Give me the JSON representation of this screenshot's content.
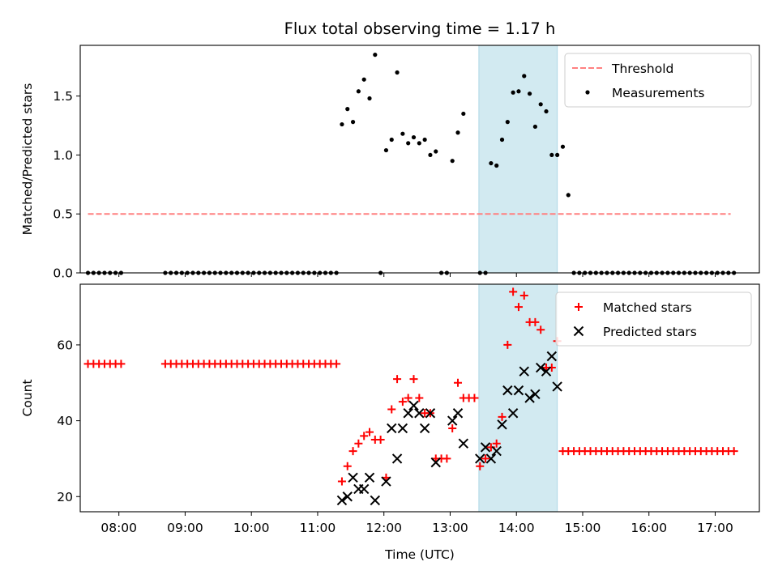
{
  "title": "Flux total observing time = 1.17 h",
  "colors": {
    "threshold": "#ff8080",
    "measurement": "#000000",
    "matched": "#ff0000",
    "predicted": "#000000",
    "highlight": "#add8e6"
  },
  "chart_data": [
    {
      "type": "scatter",
      "panel": "top",
      "xlabel": "",
      "ylabel": "Matched/Predicted stars",
      "xlim": [
        "07:25",
        "17:40"
      ],
      "ylim": [
        0,
        1.93
      ],
      "yticks": [
        "0.0",
        "0.5",
        "1.0",
        "1.5"
      ],
      "legend": {
        "placement": "top-right",
        "entries": [
          "Threshold",
          "Measurements"
        ]
      },
      "highlight_span": [
        "13:26",
        "14:37"
      ],
      "threshold": {
        "name": "Threshold",
        "value": 0.5,
        "x_range": [
          "07:32",
          "17:14"
        ]
      },
      "series": [
        {
          "name": "Measurements",
          "points": [
            [
              "07:32",
              0
            ],
            [
              "07:37",
              0
            ],
            [
              "07:42",
              0
            ],
            [
              "07:47",
              0
            ],
            [
              "07:52",
              0
            ],
            [
              "07:57",
              0
            ],
            [
              "08:02",
              0
            ],
            [
              "08:42",
              0
            ],
            [
              "08:47",
              0
            ],
            [
              "08:52",
              0
            ],
            [
              "08:57",
              0
            ],
            [
              "09:02",
              0
            ],
            [
              "09:07",
              0
            ],
            [
              "09:12",
              0
            ],
            [
              "09:17",
              0
            ],
            [
              "09:22",
              0
            ],
            [
              "09:27",
              0
            ],
            [
              "09:32",
              0
            ],
            [
              "09:37",
              0
            ],
            [
              "09:42",
              0
            ],
            [
              "09:47",
              0
            ],
            [
              "09:52",
              0
            ],
            [
              "09:57",
              0
            ],
            [
              "10:02",
              0
            ],
            [
              "10:07",
              0
            ],
            [
              "10:12",
              0
            ],
            [
              "10:17",
              0
            ],
            [
              "10:22",
              0
            ],
            [
              "10:27",
              0
            ],
            [
              "10:32",
              0
            ],
            [
              "10:37",
              0
            ],
            [
              "10:42",
              0
            ],
            [
              "10:47",
              0
            ],
            [
              "10:52",
              0
            ],
            [
              "10:57",
              0
            ],
            [
              "11:02",
              0
            ],
            [
              "11:07",
              0
            ],
            [
              "11:12",
              0
            ],
            [
              "11:17",
              0
            ],
            [
              "11:22",
              1.26
            ],
            [
              "11:27",
              1.39
            ],
            [
              "11:32",
              1.28
            ],
            [
              "11:37",
              1.54
            ],
            [
              "11:42",
              1.64
            ],
            [
              "11:47",
              1.48
            ],
            [
              "11:52",
              1.85
            ],
            [
              "11:57",
              0
            ],
            [
              "12:02",
              1.04
            ],
            [
              "12:07",
              1.13
            ],
            [
              "12:12",
              1.7
            ],
            [
              "12:17",
              1.18
            ],
            [
              "12:22",
              1.1
            ],
            [
              "12:27",
              1.15
            ],
            [
              "12:32",
              1.1
            ],
            [
              "12:37",
              1.13
            ],
            [
              "12:42",
              1.0
            ],
            [
              "12:47",
              1.03
            ],
            [
              "12:52",
              0
            ],
            [
              "12:57",
              0
            ],
            [
              "13:02",
              0.95
            ],
            [
              "13:07",
              1.19
            ],
            [
              "13:12",
              1.35
            ],
            [
              "13:27",
              0
            ],
            [
              "13:32",
              0
            ],
            [
              "13:37",
              0.93
            ],
            [
              "13:42",
              0.91
            ],
            [
              "13:47",
              1.13
            ],
            [
              "13:52",
              1.28
            ],
            [
              "13:57",
              1.53
            ],
            [
              "14:02",
              1.54
            ],
            [
              "14:07",
              1.67
            ],
            [
              "14:12",
              1.52
            ],
            [
              "14:17",
              1.24
            ],
            [
              "14:22",
              1.43
            ],
            [
              "14:27",
              1.37
            ],
            [
              "14:32",
              1.0
            ],
            [
              "14:37",
              1.0
            ],
            [
              "14:42",
              1.07
            ],
            [
              "14:47",
              0.66
            ],
            [
              "14:52",
              0
            ],
            [
              "14:57",
              0
            ],
            [
              "15:02",
              0
            ],
            [
              "15:07",
              0
            ],
            [
              "15:12",
              0
            ],
            [
              "15:17",
              0
            ],
            [
              "15:22",
              0
            ],
            [
              "15:27",
              0
            ],
            [
              "15:32",
              0
            ],
            [
              "15:37",
              0
            ],
            [
              "15:42",
              0
            ],
            [
              "15:47",
              0
            ],
            [
              "15:52",
              0
            ],
            [
              "15:57",
              0
            ],
            [
              "16:02",
              0
            ],
            [
              "16:07",
              0
            ],
            [
              "16:12",
              0
            ],
            [
              "16:17",
              0
            ],
            [
              "16:22",
              0
            ],
            [
              "16:27",
              0
            ],
            [
              "16:32",
              0
            ],
            [
              "16:37",
              0
            ],
            [
              "16:42",
              0
            ],
            [
              "16:47",
              0
            ],
            [
              "16:52",
              0
            ],
            [
              "16:57",
              0
            ],
            [
              "17:02",
              0
            ],
            [
              "17:07",
              0
            ],
            [
              "17:12",
              0
            ],
            [
              "17:17",
              0
            ]
          ]
        }
      ]
    },
    {
      "type": "scatter",
      "panel": "bottom",
      "xlabel": "Time (UTC)",
      "ylabel": "Count",
      "xlim": [
        "07:25",
        "17:40"
      ],
      "ylim": [
        16,
        76
      ],
      "yticks": [
        "20",
        "40",
        "60"
      ],
      "xticks": [
        "08:00",
        "09:00",
        "10:00",
        "11:00",
        "12:00",
        "13:00",
        "14:00",
        "15:00",
        "16:00",
        "17:00"
      ],
      "legend": {
        "placement": "top-right",
        "entries": [
          "Matched stars",
          "Predicted stars"
        ]
      },
      "highlight_span": [
        "13:26",
        "14:37"
      ],
      "series": [
        {
          "name": "Matched stars",
          "marker": "plus",
          "points": [
            [
              "07:32",
              55
            ],
            [
              "07:37",
              55
            ],
            [
              "07:42",
              55
            ],
            [
              "07:47",
              55
            ],
            [
              "07:52",
              55
            ],
            [
              "07:57",
              55
            ],
            [
              "08:02",
              55
            ],
            [
              "08:42",
              55
            ],
            [
              "08:47",
              55
            ],
            [
              "08:52",
              55
            ],
            [
              "08:57",
              55
            ],
            [
              "09:02",
              55
            ],
            [
              "09:07",
              55
            ],
            [
              "09:12",
              55
            ],
            [
              "09:17",
              55
            ],
            [
              "09:22",
              55
            ],
            [
              "09:27",
              55
            ],
            [
              "09:32",
              55
            ],
            [
              "09:37",
              55
            ],
            [
              "09:42",
              55
            ],
            [
              "09:47",
              55
            ],
            [
              "09:52",
              55
            ],
            [
              "09:57",
              55
            ],
            [
              "10:02",
              55
            ],
            [
              "10:07",
              55
            ],
            [
              "10:12",
              55
            ],
            [
              "10:17",
              55
            ],
            [
              "10:22",
              55
            ],
            [
              "10:27",
              55
            ],
            [
              "10:32",
              55
            ],
            [
              "10:37",
              55
            ],
            [
              "10:42",
              55
            ],
            [
              "10:47",
              55
            ],
            [
              "10:52",
              55
            ],
            [
              "10:57",
              55
            ],
            [
              "11:02",
              55
            ],
            [
              "11:07",
              55
            ],
            [
              "11:12",
              55
            ],
            [
              "11:17",
              55
            ],
            [
              "11:22",
              24
            ],
            [
              "11:27",
              28
            ],
            [
              "11:32",
              32
            ],
            [
              "11:37",
              34
            ],
            [
              "11:42",
              36
            ],
            [
              "11:47",
              37
            ],
            [
              "11:52",
              35
            ],
            [
              "11:57",
              35
            ],
            [
              "12:02",
              25
            ],
            [
              "12:07",
              43
            ],
            [
              "12:12",
              51
            ],
            [
              "12:17",
              45
            ],
            [
              "12:22",
              46
            ],
            [
              "12:27",
              51
            ],
            [
              "12:32",
              46
            ],
            [
              "12:37",
              42
            ],
            [
              "12:42",
              42
            ],
            [
              "12:47",
              30
            ],
            [
              "12:52",
              30
            ],
            [
              "12:57",
              30
            ],
            [
              "13:02",
              38
            ],
            [
              "13:07",
              50
            ],
            [
              "13:12",
              46
            ],
            [
              "13:17",
              46
            ],
            [
              "13:22",
              46
            ],
            [
              "13:27",
              28
            ],
            [
              "13:32",
              30
            ],
            [
              "13:37",
              33
            ],
            [
              "13:42",
              34
            ],
            [
              "13:47",
              41
            ],
            [
              "13:52",
              60
            ],
            [
              "13:57",
              74
            ],
            [
              "14:02",
              70
            ],
            [
              "14:07",
              73
            ],
            [
              "14:12",
              66
            ],
            [
              "14:17",
              66
            ],
            [
              "14:22",
              64
            ],
            [
              "14:27",
              54
            ],
            [
              "14:32",
              54
            ],
            [
              "14:37",
              61
            ],
            [
              "14:42",
              32
            ],
            [
              "14:47",
              32
            ],
            [
              "14:52",
              32
            ],
            [
              "14:57",
              32
            ],
            [
              "15:02",
              32
            ],
            [
              "15:07",
              32
            ],
            [
              "15:12",
              32
            ],
            [
              "15:17",
              32
            ],
            [
              "15:22",
              32
            ],
            [
              "15:27",
              32
            ],
            [
              "15:32",
              32
            ],
            [
              "15:37",
              32
            ],
            [
              "15:42",
              32
            ],
            [
              "15:47",
              32
            ],
            [
              "15:52",
              32
            ],
            [
              "15:57",
              32
            ],
            [
              "16:02",
              32
            ],
            [
              "16:07",
              32
            ],
            [
              "16:12",
              32
            ],
            [
              "16:17",
              32
            ],
            [
              "16:22",
              32
            ],
            [
              "16:27",
              32
            ],
            [
              "16:32",
              32
            ],
            [
              "16:37",
              32
            ],
            [
              "16:42",
              32
            ],
            [
              "16:47",
              32
            ],
            [
              "16:52",
              32
            ],
            [
              "16:57",
              32
            ],
            [
              "17:02",
              32
            ],
            [
              "17:07",
              32
            ],
            [
              "17:12",
              32
            ],
            [
              "17:17",
              32
            ]
          ]
        },
        {
          "name": "Predicted stars",
          "marker": "x",
          "points": [
            [
              "11:22",
              19
            ],
            [
              "11:27",
              20
            ],
            [
              "11:32",
              25
            ],
            [
              "11:37",
              22
            ],
            [
              "11:42",
              22
            ],
            [
              "11:47",
              25
            ],
            [
              "11:52",
              19
            ],
            [
              "12:02",
              24
            ],
            [
              "12:07",
              38
            ],
            [
              "12:12",
              30
            ],
            [
              "12:17",
              38
            ],
            [
              "12:22",
              42
            ],
            [
              "12:27",
              44
            ],
            [
              "12:32",
              42
            ],
            [
              "12:37",
              38
            ],
            [
              "12:42",
              42
            ],
            [
              "12:47",
              29
            ],
            [
              "13:02",
              40
            ],
            [
              "13:07",
              42
            ],
            [
              "13:12",
              34
            ],
            [
              "13:27",
              30
            ],
            [
              "13:32",
              33
            ],
            [
              "13:37",
              30
            ],
            [
              "13:42",
              32
            ],
            [
              "13:47",
              39
            ],
            [
              "13:52",
              48
            ],
            [
              "13:57",
              42
            ],
            [
              "14:02",
              48
            ],
            [
              "14:07",
              53
            ],
            [
              "14:12",
              46
            ],
            [
              "14:17",
              47
            ],
            [
              "14:22",
              54
            ],
            [
              "14:27",
              53
            ],
            [
              "14:32",
              57
            ],
            [
              "14:37",
              49
            ]
          ]
        }
      ]
    }
  ]
}
